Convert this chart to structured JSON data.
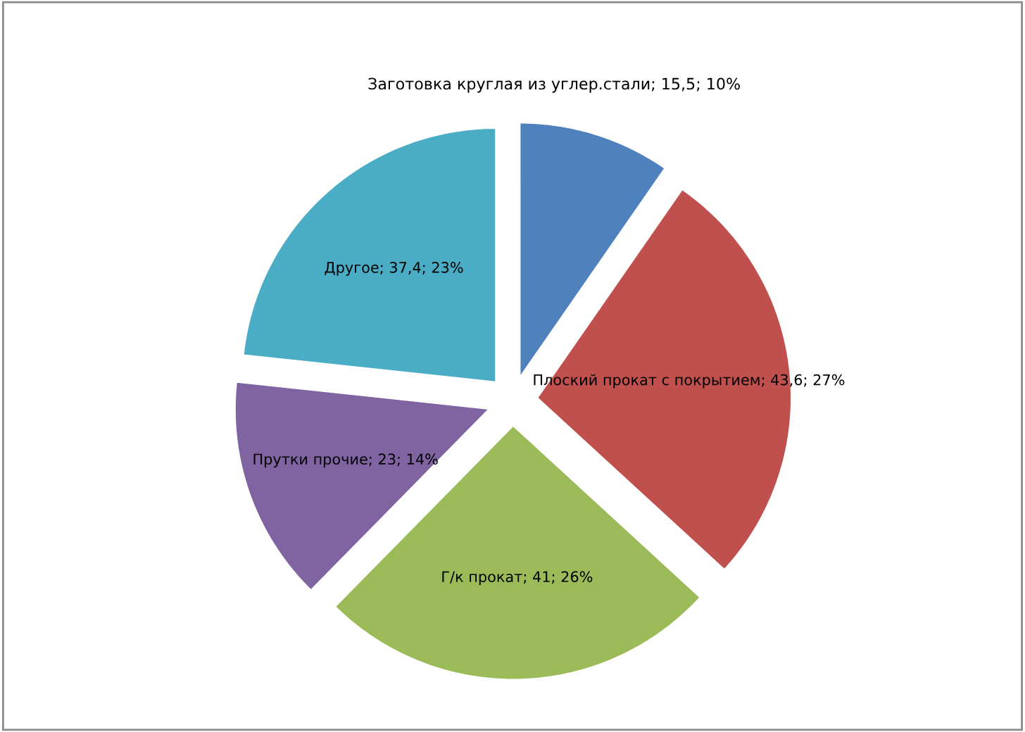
{
  "chart_data": {
    "type": "pie",
    "categories": [
      "Заготовка круглая из углер.стали; 15,5; 10%",
      "Плоский прокат с покрытием; 43,6; 27%",
      "Г/к прокат; 41; 26%",
      "Прутки прочие; 23; 14%",
      "Другое; 37,4; 23%"
    ],
    "values": [
      15.5,
      43.6,
      41,
      23,
      37.4
    ],
    "colors": [
      "#4f81bd",
      "#c0504d",
      "#9bbb59",
      "#8064a2",
      "#4bacc6"
    ],
    "legend": false
  }
}
